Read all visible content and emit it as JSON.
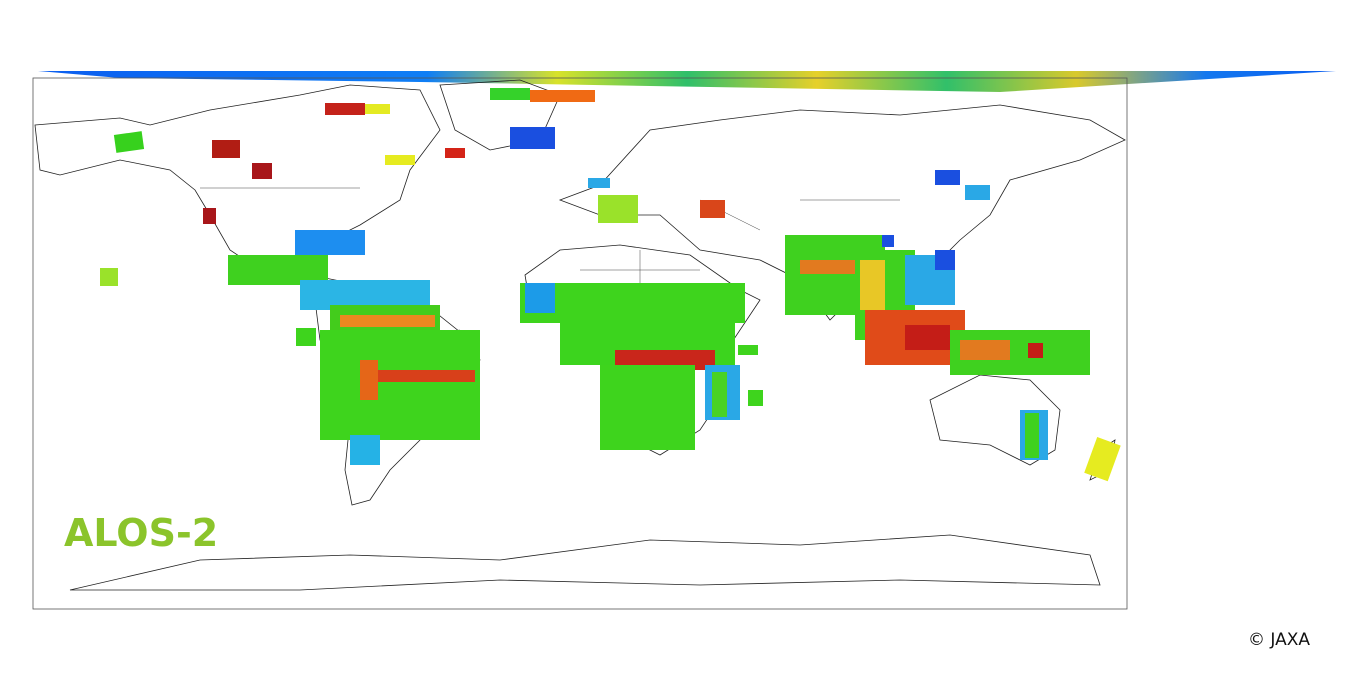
{
  "logo": {
    "text": "ALOS-2"
  },
  "credit": "© JAXA"
}
